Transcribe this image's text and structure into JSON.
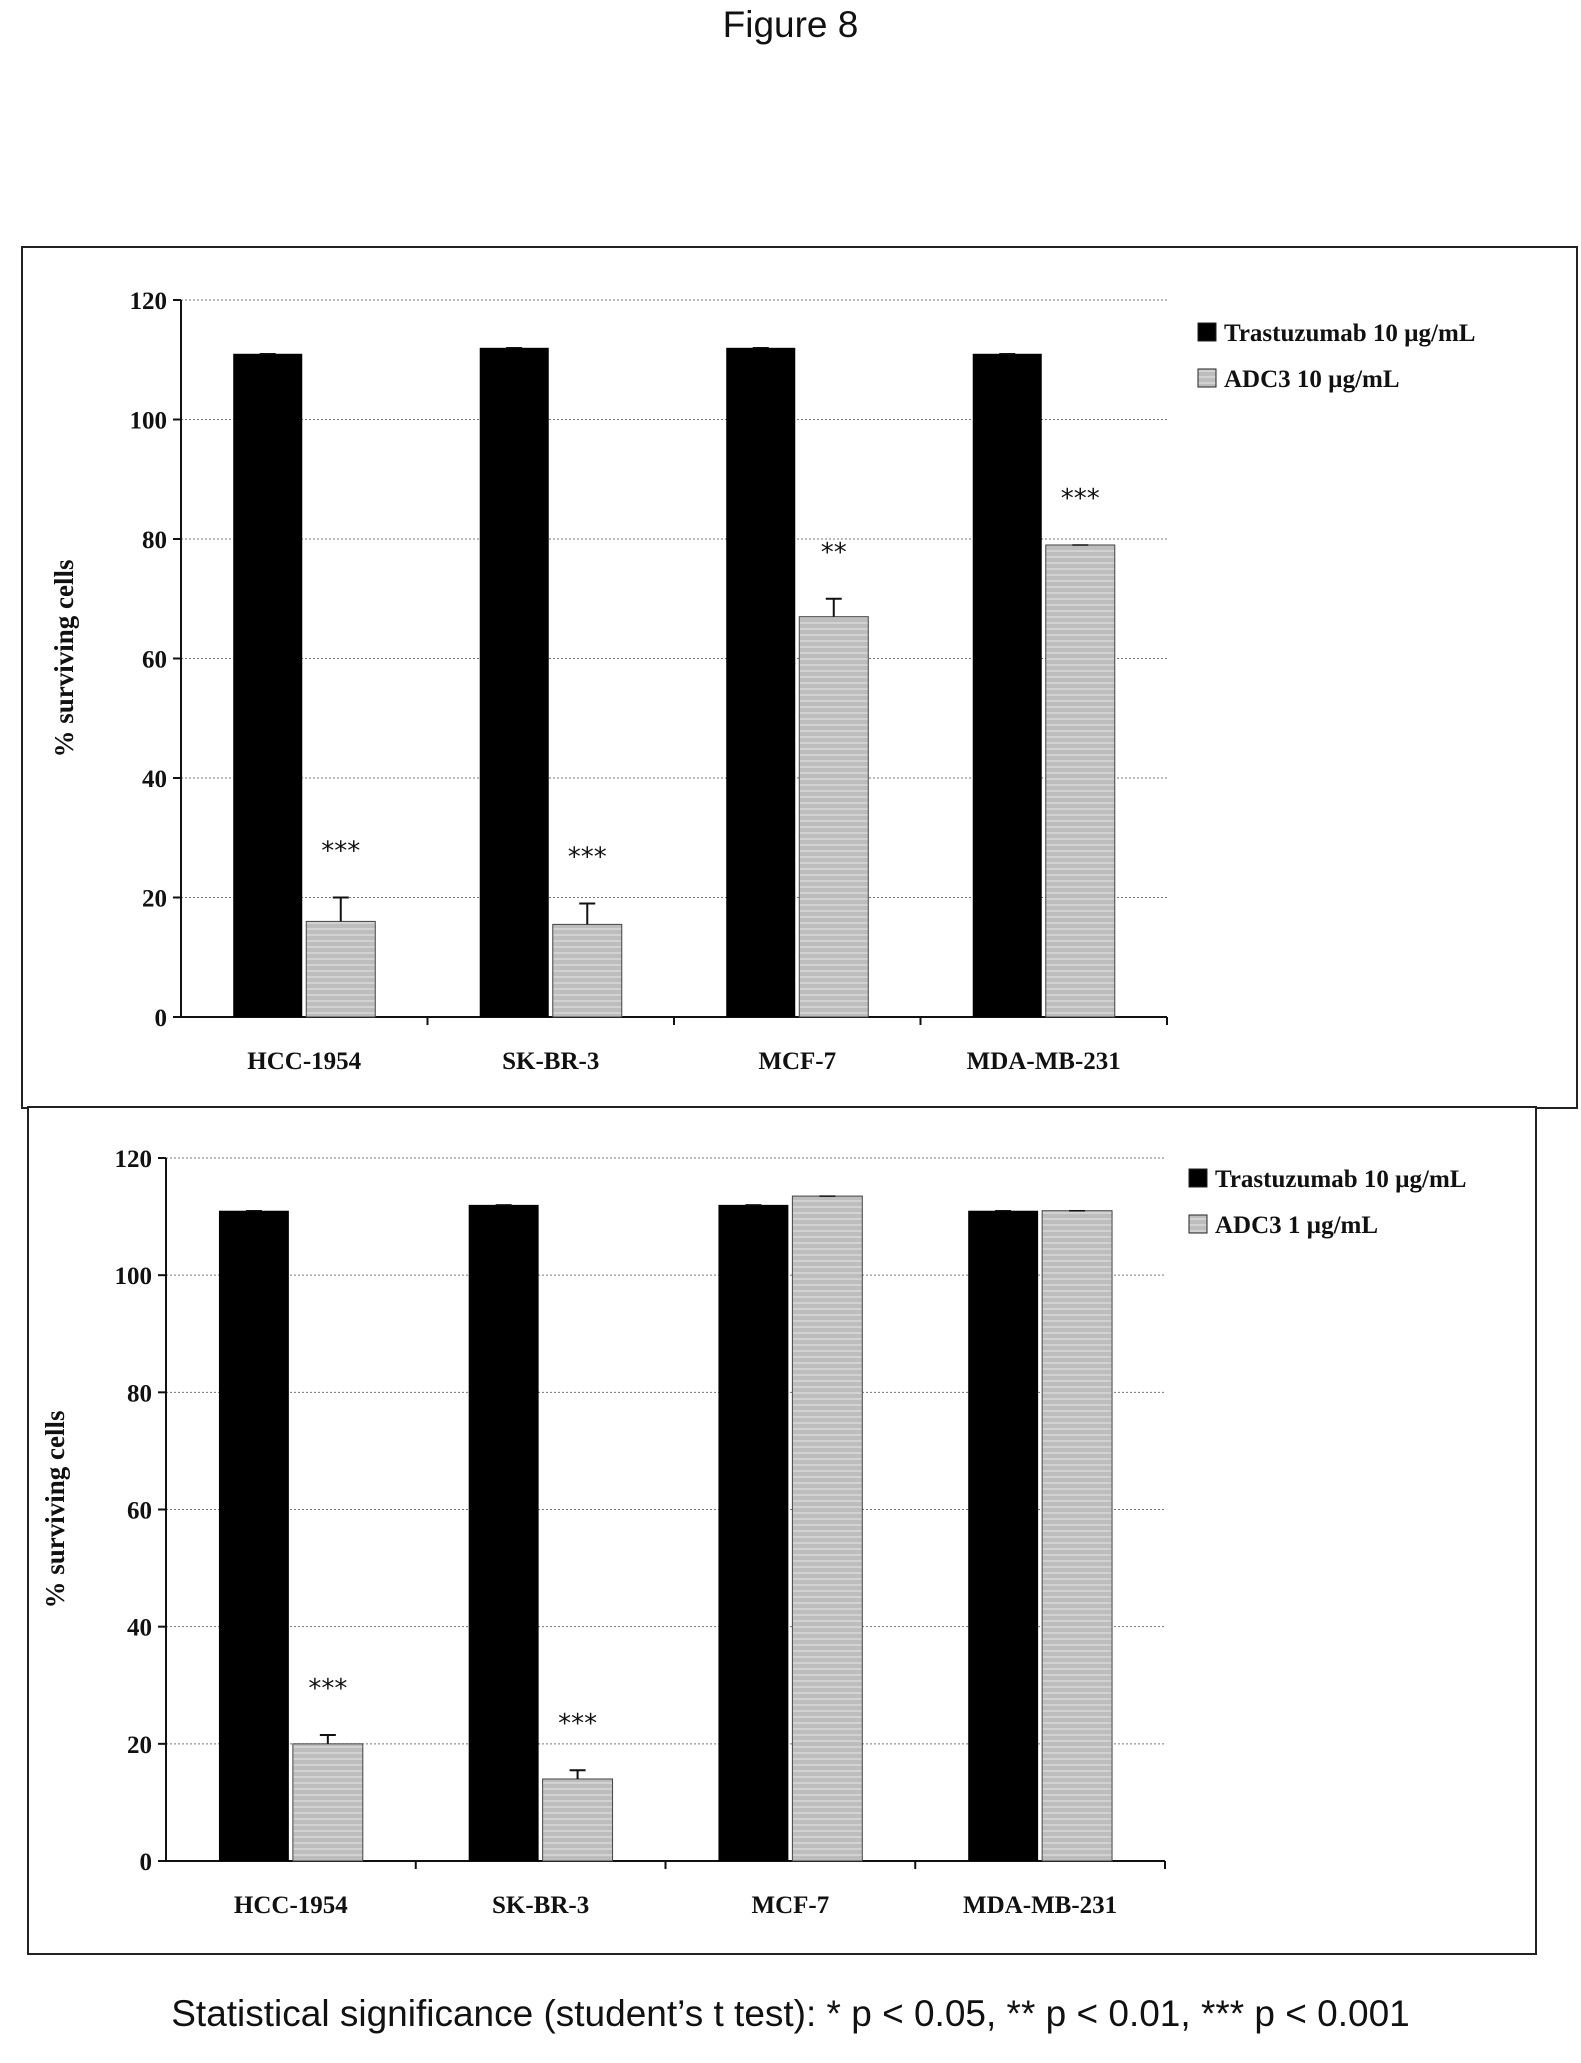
{
  "figure_title": "Figure 8",
  "footnote": "Statistical significance (student’s t test): * p < 0.05, ** p < 0.01, *** p < 0.001",
  "colors": {
    "series1": "#000000",
    "series2": "#bdbdbd",
    "grid": "#777777"
  },
  "chart_data": [
    {
      "type": "bar",
      "categories": [
        "HCC-1954",
        "SK-BR-3",
        "MCF-7",
        "MDA-MB-231"
      ],
      "ylabel": "% surviving cells",
      "ylim": [
        0,
        120
      ],
      "yticks": [
        "0",
        "20",
        "40",
        "60",
        "80",
        "100",
        "120"
      ],
      "grid": true,
      "legend_position": "right",
      "series": [
        {
          "name": "Trastuzumab 10 µg/mL",
          "values": [
            111,
            112,
            112,
            111
          ],
          "errors": [
            0,
            0,
            0,
            0
          ]
        },
        {
          "name": "ADC3 10 µg/mL",
          "values": [
            16,
            15.5,
            67,
            79
          ],
          "errors": [
            4,
            3.5,
            3,
            0
          ],
          "significance": [
            "***",
            "***",
            "**",
            "***"
          ]
        }
      ]
    },
    {
      "type": "bar",
      "categories": [
        "HCC-1954",
        "SK-BR-3",
        "MCF-7",
        "MDA-MB-231"
      ],
      "ylabel": "% surviving cells",
      "ylim": [
        0,
        120
      ],
      "yticks": [
        "0",
        "20",
        "40",
        "60",
        "80",
        "100",
        "120"
      ],
      "grid": true,
      "legend_position": "right",
      "series": [
        {
          "name": "Trastuzumab 10 µg/mL",
          "values": [
            111,
            112,
            112,
            111
          ],
          "errors": [
            0,
            0,
            0,
            0
          ]
        },
        {
          "name": "ADC3 1 µg/mL",
          "values": [
            20,
            14,
            113.5,
            111
          ],
          "errors": [
            1.5,
            1.5,
            0,
            0
          ],
          "significance": [
            "***",
            "***",
            "",
            ""
          ]
        }
      ]
    }
  ]
}
